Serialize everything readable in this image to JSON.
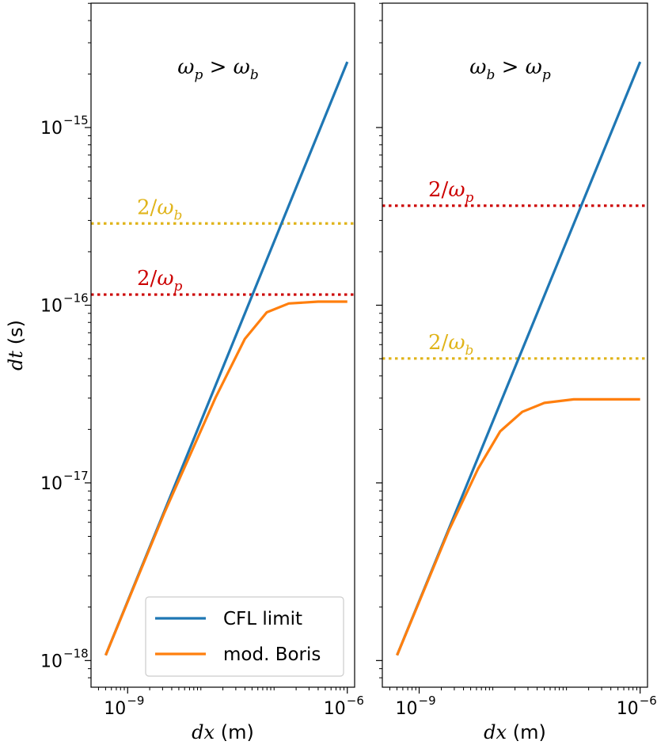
{
  "chart_data": [
    {
      "type": "line",
      "panel": "left",
      "title": "ω_p > ω_b",
      "title_parts": {
        "a": "ω",
        "a_sub": "p",
        "op": ">",
        "b": "ω",
        "b_sub": "b"
      },
      "xscale": "log",
      "yscale": "log",
      "xlim_log10": [
        -9.5,
        -5.9
      ],
      "ylim_log10": [
        -18.15,
        -14.3
      ],
      "xticks": [
        {
          "log10": -9,
          "base": "10",
          "exp": "−9"
        },
        {
          "log10": -6,
          "base": "10",
          "exp": "−6"
        }
      ],
      "yticks": [
        {
          "log10": -15,
          "base": "10",
          "exp": "−15"
        },
        {
          "log10": -16,
          "base": "10",
          "exp": "−16"
        },
        {
          "log10": -17,
          "base": "10",
          "exp": "−17"
        },
        {
          "log10": -18,
          "base": "10",
          "exp": "−18"
        }
      ],
      "xlabel": {
        "var": "dx",
        "unit": "(m)"
      },
      "ylabel": {
        "var": "dt",
        "unit": "(s)"
      },
      "series": [
        {
          "name": "CFL limit",
          "color": "#1f77b4",
          "x_log10": [
            -9.3,
            -6.0
          ],
          "y_log10": [
            -17.97,
            -14.63
          ]
        },
        {
          "name": "mod. Boris",
          "color": "#ff7f0e",
          "x_log10": [
            -9.3,
            -8.5,
            -7.8,
            -7.4,
            -7.1,
            -6.8,
            -6.4,
            -6.0
          ],
          "y_log10": [
            -17.97,
            -17.17,
            -16.52,
            -16.19,
            -16.04,
            -15.99,
            -15.98,
            -15.98
          ]
        }
      ],
      "hlines": [
        {
          "label_num": "2/",
          "label_sym": "ω",
          "label_sub": "b",
          "y_log10": -15.54,
          "color": "#e0b41a"
        },
        {
          "label_num": "2/",
          "label_sym": "ω",
          "label_sub": "p",
          "y_log10": -15.94,
          "color": "#cc0000"
        }
      ],
      "legend": {
        "placement": "lower-right",
        "entries": [
          "CFL limit",
          "mod. Boris"
        ]
      }
    },
    {
      "type": "line",
      "panel": "right",
      "title": "ω_b > ω_p",
      "title_parts": {
        "a": "ω",
        "a_sub": "b",
        "op": ">",
        "b": "ω",
        "b_sub": "p"
      },
      "xscale": "log",
      "yscale": "log",
      "xlim_log10": [
        -9.5,
        -5.9
      ],
      "ylim_log10": [
        -18.15,
        -14.3
      ],
      "xticks": [
        {
          "log10": -9,
          "base": "10",
          "exp": "−9"
        },
        {
          "log10": -6,
          "base": "10",
          "exp": "−6"
        }
      ],
      "xlabel": {
        "var": "dx",
        "unit": "(m)"
      },
      "series": [
        {
          "name": "CFL limit",
          "color": "#1f77b4",
          "x_log10": [
            -9.3,
            -6.0
          ],
          "y_log10": [
            -17.97,
            -14.63
          ]
        },
        {
          "name": "mod. Boris",
          "color": "#ff7f0e",
          "x_log10": [
            -9.3,
            -8.6,
            -8.2,
            -7.9,
            -7.6,
            -7.3,
            -6.9,
            -6.0
          ],
          "y_log10": [
            -17.97,
            -17.27,
            -16.92,
            -16.71,
            -16.6,
            -16.55,
            -16.53,
            -16.53
          ]
        }
      ],
      "hlines": [
        {
          "label_num": "2/",
          "label_sym": "ω",
          "label_sub": "p",
          "y_log10": -15.44,
          "color": "#cc0000"
        },
        {
          "label_num": "2/",
          "label_sym": "ω",
          "label_sub": "b",
          "y_log10": -16.3,
          "color": "#e0b41a"
        }
      ]
    }
  ]
}
